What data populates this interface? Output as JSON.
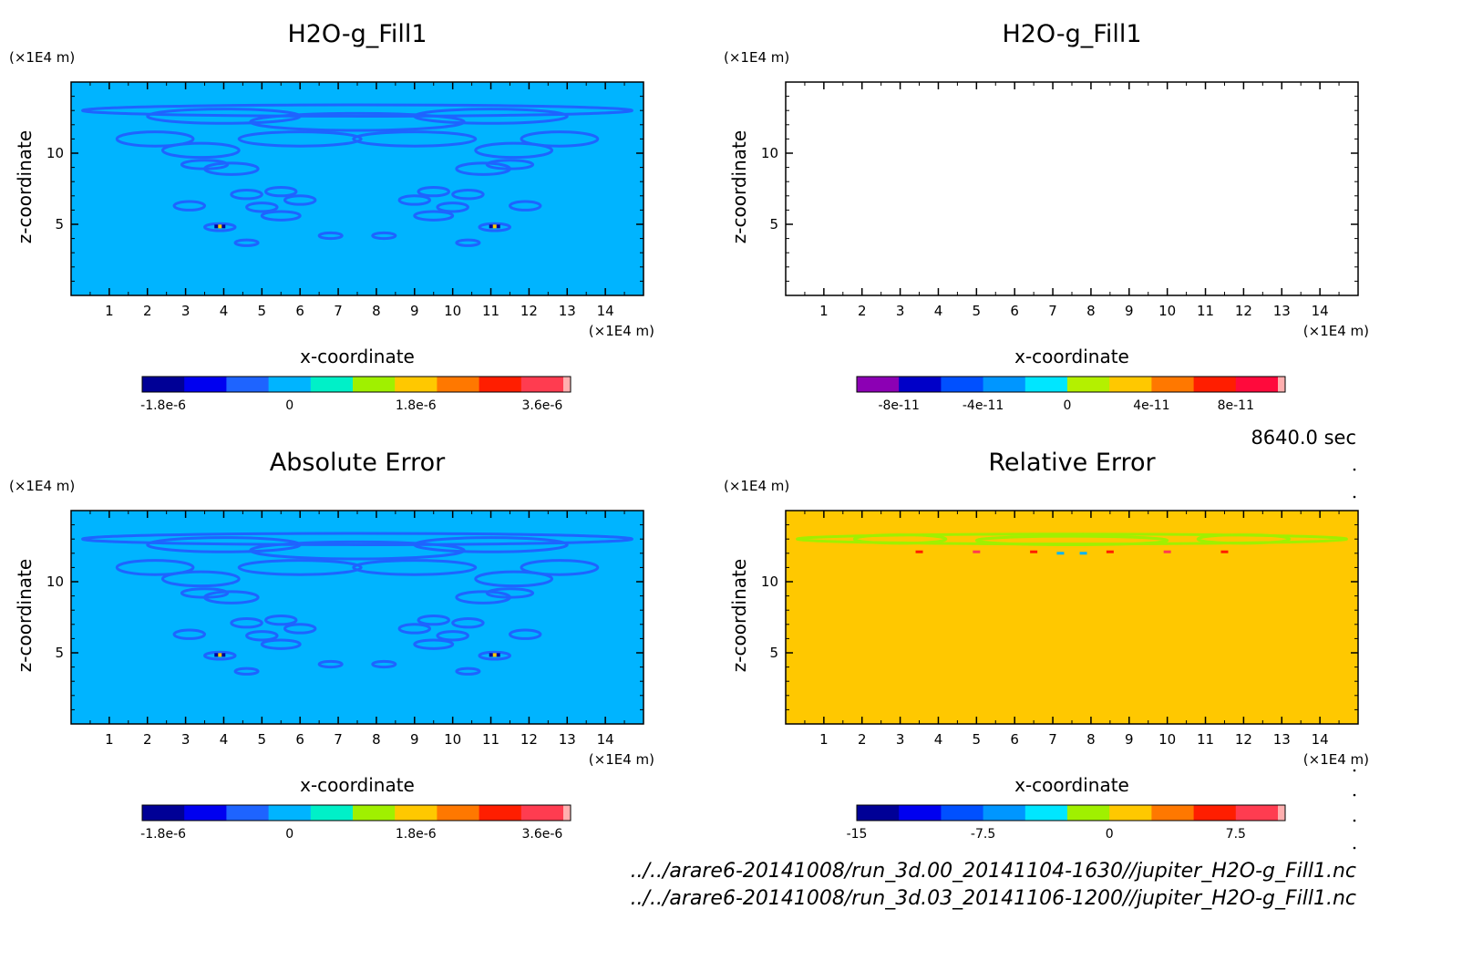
{
  "time_label": "8640.0 sec",
  "footer": {
    "file1": "../../arare6-20141008/run_3d.00_20141104-1630//jupiter_H2O-g_Fill1.nc",
    "file2": "../../arare6-20141008/run_3d.03_20141106-1200//jupiter_H2O-g_Fill1.nc"
  },
  "chart_data": [
    {
      "type": "heatmap",
      "title": "H2O-g_Fill1",
      "xlabel": "x-coordinate",
      "ylabel": "z-coordinate",
      "x_unit": "(×1E4 m)",
      "y_unit": "(×1E4 m)",
      "x_ticks": [
        "1",
        "2",
        "3",
        "4",
        "5",
        "6",
        "7",
        "8",
        "9",
        "10",
        "11",
        "12",
        "13",
        "14"
      ],
      "y_ticks": [
        "5",
        "10"
      ],
      "xlim": [
        0,
        15
      ],
      "ylim": [
        0,
        15
      ],
      "background_color": "#00b4ff",
      "contour_color": "#1e64ff",
      "colorbar": {
        "colors": [
          "#000096",
          "#0000f0",
          "#1e64ff",
          "#00b4ff",
          "#00f0c8",
          "#a0f000",
          "#ffc800",
          "#ff7800",
          "#ff1e00",
          "#ff3c50",
          "#ffafaf"
        ],
        "tick_labels": [
          "-1.8e-6",
          "0",
          "1.8e-6",
          "3.6e-6"
        ],
        "tick_positions": [
          0.5,
          3.5,
          6.5,
          9.5
        ]
      }
    },
    {
      "type": "heatmap",
      "title": "H2O-g_Fill1",
      "xlabel": "x-coordinate",
      "ylabel": "z-coordinate",
      "x_unit": "(×1E4 m)",
      "y_unit": "(×1E4 m)",
      "x_ticks": [
        "1",
        "2",
        "3",
        "4",
        "5",
        "6",
        "7",
        "8",
        "9",
        "10",
        "11",
        "12",
        "13",
        "14"
      ],
      "y_ticks": [
        "5",
        "10"
      ],
      "xlim": [
        0,
        15
      ],
      "ylim": [
        0,
        15
      ],
      "background_color": "#ffffff",
      "contour_color": null,
      "colorbar": {
        "colors": [
          "#8c00b4",
          "#0000c8",
          "#0050ff",
          "#0096ff",
          "#00e6ff",
          "#b4f000",
          "#ffc800",
          "#ff7800",
          "#ff1e00",
          "#ff0a3c",
          "#ffafaf"
        ],
        "tick_labels": [
          "-8e-11",
          "-4e-11",
          "0",
          "4e-11",
          "8e-11"
        ],
        "tick_positions": [
          1,
          3,
          5,
          7,
          9
        ]
      }
    },
    {
      "type": "heatmap",
      "title": "Absolute Error",
      "xlabel": "x-coordinate",
      "ylabel": "z-coordinate",
      "x_unit": "(×1E4 m)",
      "y_unit": "(×1E4 m)",
      "x_ticks": [
        "1",
        "2",
        "3",
        "4",
        "5",
        "6",
        "7",
        "8",
        "9",
        "10",
        "11",
        "12",
        "13",
        "14"
      ],
      "y_ticks": [
        "5",
        "10"
      ],
      "xlim": [
        0,
        15
      ],
      "ylim": [
        0,
        15
      ],
      "background_color": "#00b4ff",
      "contour_color": "#1e64ff",
      "colorbar": {
        "colors": [
          "#000096",
          "#0000f0",
          "#1e64ff",
          "#00b4ff",
          "#00f0c8",
          "#a0f000",
          "#ffc800",
          "#ff7800",
          "#ff1e00",
          "#ff3c50",
          "#ffafaf"
        ],
        "tick_labels": [
          "-1.8e-6",
          "0",
          "1.8e-6",
          "3.6e-6"
        ],
        "tick_positions": [
          0.5,
          3.5,
          6.5,
          9.5
        ]
      }
    },
    {
      "type": "heatmap",
      "title": "Relative Error",
      "xlabel": "x-coordinate",
      "ylabel": "z-coordinate",
      "x_unit": "(×1E4 m)",
      "y_unit": "(×1E4 m)",
      "x_ticks": [
        "1",
        "2",
        "3",
        "4",
        "5",
        "6",
        "7",
        "8",
        "9",
        "10",
        "11",
        "12",
        "13",
        "14"
      ],
      "y_ticks": [
        "5",
        "10"
      ],
      "xlim": [
        0,
        15
      ],
      "ylim": [
        0,
        15
      ],
      "background_color": "#ffc800",
      "contour_color": "#a0f000",
      "colorbar": {
        "colors": [
          "#000096",
          "#0000f0",
          "#0050ff",
          "#0096ff",
          "#00e6ff",
          "#a0f000",
          "#ffc800",
          "#ff7800",
          "#ff1e00",
          "#ff3c50",
          "#ffafaf"
        ],
        "tick_labels": [
          "-15",
          "-7.5",
          "0",
          "7.5"
        ],
        "tick_positions": [
          0,
          3,
          6,
          9
        ]
      }
    }
  ]
}
